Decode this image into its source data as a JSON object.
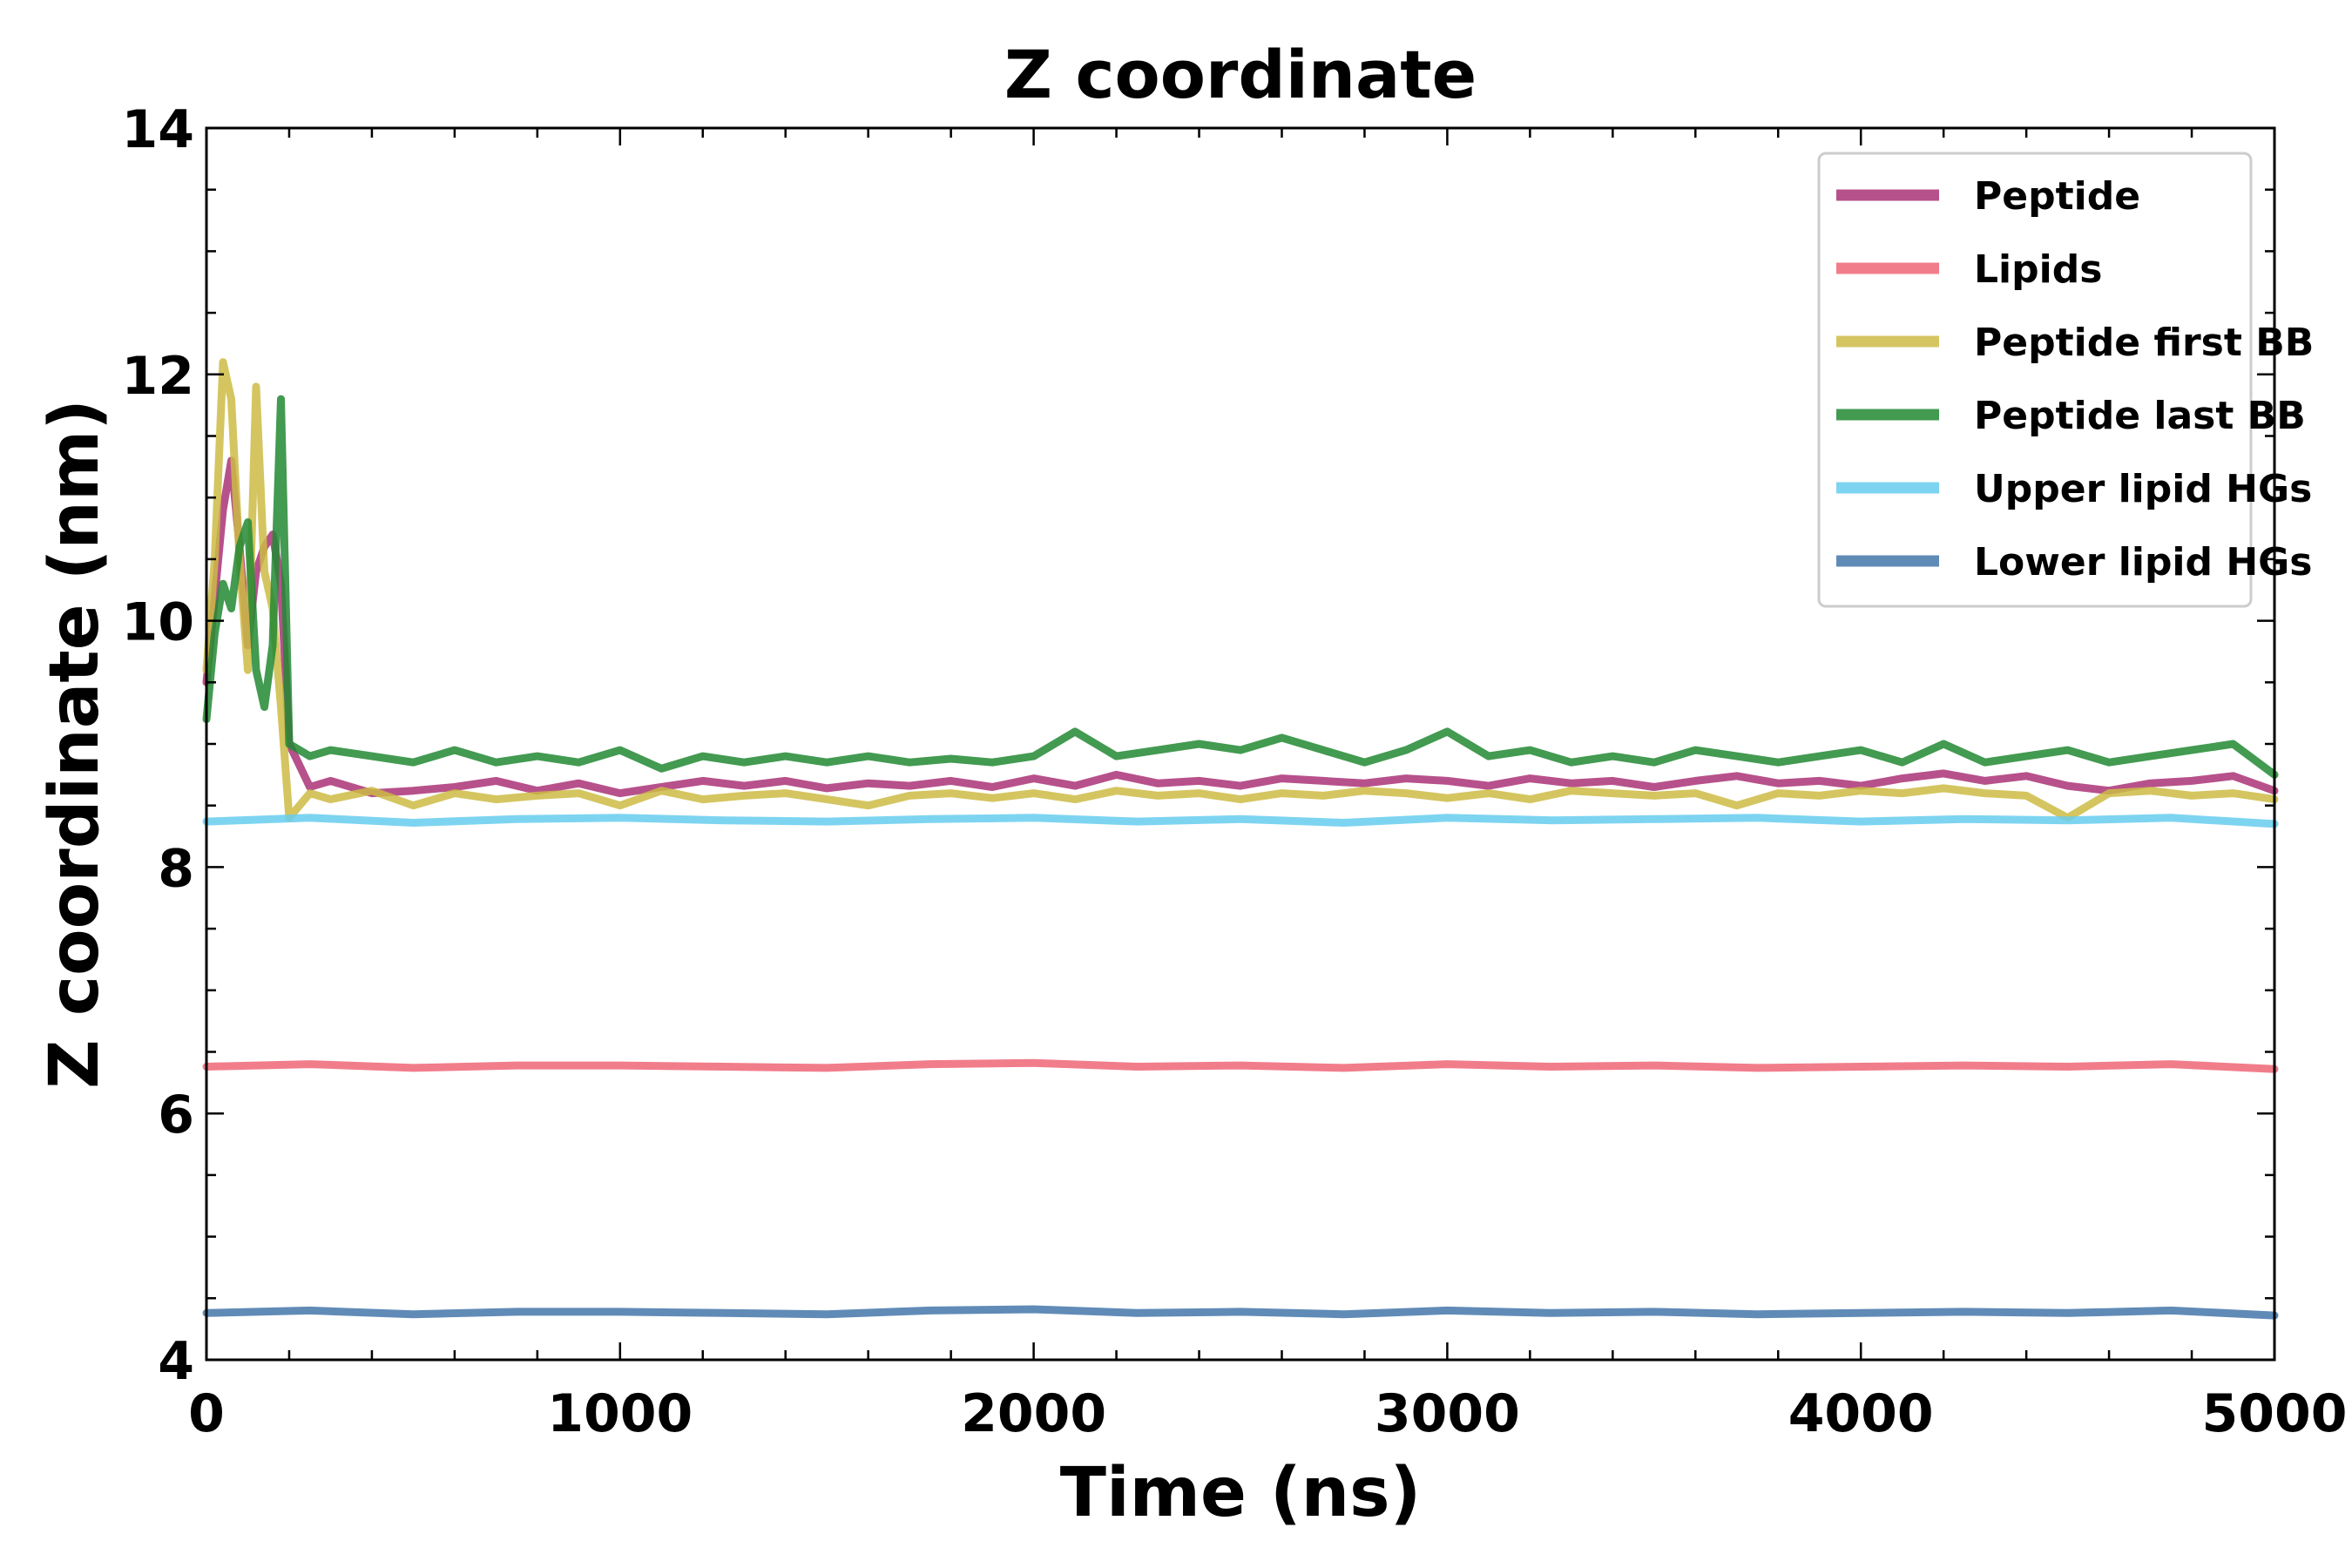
{
  "chart_data": {
    "type": "line",
    "title": "Z coordinate",
    "xlabel": "Time (ns)",
    "ylabel": "Z coordinate (nm)",
    "xlim": [
      0,
      5000
    ],
    "ylim": [
      4,
      14
    ],
    "xticks": [
      0,
      1000,
      2000,
      3000,
      4000,
      5000
    ],
    "yticks": [
      4,
      6,
      8,
      10,
      12,
      14
    ],
    "grid": false,
    "legend_position": "top-right",
    "series": [
      {
        "name": "Peptide",
        "color": "#AA3377",
        "x": [
          0,
          20,
          40,
          60,
          80,
          100,
          120,
          140,
          160,
          180,
          200,
          250,
          300,
          400,
          500,
          600,
          700,
          800,
          900,
          1000,
          1100,
          1200,
          1300,
          1400,
          1500,
          1600,
          1700,
          1800,
          1900,
          2000,
          2100,
          2200,
          2300,
          2400,
          2500,
          2600,
          2700,
          2800,
          2900,
          3000,
          3100,
          3200,
          3300,
          3400,
          3500,
          3600,
          3700,
          3800,
          3900,
          4000,
          4100,
          4200,
          4300,
          4400,
          4500,
          4600,
          4700,
          4800,
          4900,
          5000
        ],
        "y": [
          9.5,
          10.2,
          10.9,
          11.3,
          10.6,
          9.8,
          10.4,
          10.6,
          10.7,
          10.3,
          9.0,
          8.65,
          8.7,
          8.6,
          8.62,
          8.65,
          8.7,
          8.62,
          8.68,
          8.6,
          8.65,
          8.7,
          8.66,
          8.7,
          8.64,
          8.68,
          8.66,
          8.7,
          8.65,
          8.72,
          8.66,
          8.75,
          8.68,
          8.7,
          8.66,
          8.72,
          8.7,
          8.68,
          8.72,
          8.7,
          8.66,
          8.72,
          8.68,
          8.7,
          8.65,
          8.7,
          8.74,
          8.68,
          8.7,
          8.66,
          8.72,
          8.76,
          8.7,
          8.74,
          8.66,
          8.62,
          8.68,
          8.7,
          8.74,
          8.62
        ]
      },
      {
        "name": "Lipids",
        "color": "#EE6677",
        "x": [
          0,
          250,
          500,
          750,
          1000,
          1250,
          1500,
          1750,
          2000,
          2250,
          2500,
          2750,
          3000,
          3250,
          3500,
          3750,
          4000,
          4250,
          4500,
          4750,
          5000
        ],
        "y": [
          6.38,
          6.4,
          6.37,
          6.39,
          6.39,
          6.38,
          6.37,
          6.4,
          6.41,
          6.38,
          6.39,
          6.37,
          6.4,
          6.38,
          6.39,
          6.37,
          6.38,
          6.39,
          6.38,
          6.4,
          6.36
        ]
      },
      {
        "name": "Peptide first BB",
        "color": "#CCBB44",
        "x": [
          0,
          20,
          40,
          60,
          80,
          100,
          120,
          140,
          160,
          180,
          200,
          250,
          300,
          400,
          500,
          600,
          700,
          800,
          900,
          1000,
          1100,
          1200,
          1300,
          1400,
          1500,
          1600,
          1700,
          1800,
          1900,
          2000,
          2100,
          2200,
          2300,
          2400,
          2500,
          2600,
          2700,
          2800,
          2900,
          3000,
          3100,
          3200,
          3300,
          3400,
          3500,
          3600,
          3700,
          3800,
          3900,
          4000,
          4100,
          4200,
          4300,
          4400,
          4500,
          4600,
          4700,
          4800,
          4900,
          5000
        ],
        "y": [
          9.6,
          10.5,
          12.1,
          11.8,
          10.5,
          9.6,
          11.9,
          10.4,
          10.1,
          9.3,
          8.4,
          8.6,
          8.55,
          8.62,
          8.5,
          8.6,
          8.55,
          8.58,
          8.6,
          8.5,
          8.62,
          8.55,
          8.58,
          8.6,
          8.55,
          8.5,
          8.58,
          8.6,
          8.56,
          8.6,
          8.55,
          8.62,
          8.58,
          8.6,
          8.55,
          8.6,
          8.58,
          8.62,
          8.6,
          8.56,
          8.6,
          8.55,
          8.62,
          8.6,
          8.58,
          8.6,
          8.5,
          8.6,
          8.58,
          8.62,
          8.6,
          8.64,
          8.6,
          8.58,
          8.4,
          8.6,
          8.62,
          8.58,
          8.6,
          8.55
        ]
      },
      {
        "name": "Peptide last BB",
        "color": "#228833",
        "x": [
          0,
          20,
          40,
          60,
          80,
          100,
          120,
          140,
          160,
          180,
          200,
          250,
          300,
          400,
          500,
          600,
          700,
          800,
          900,
          1000,
          1100,
          1200,
          1300,
          1400,
          1500,
          1600,
          1700,
          1800,
          1900,
          2000,
          2100,
          2200,
          2300,
          2400,
          2500,
          2600,
          2700,
          2800,
          2900,
          3000,
          3100,
          3200,
          3300,
          3400,
          3500,
          3600,
          3700,
          3800,
          3900,
          4000,
          4100,
          4200,
          4300,
          4400,
          4500,
          4600,
          4700,
          4800,
          4900,
          5000
        ],
        "y": [
          9.2,
          9.9,
          10.3,
          10.1,
          10.6,
          10.8,
          9.6,
          9.3,
          9.8,
          11.8,
          9.0,
          8.9,
          8.95,
          8.9,
          8.85,
          8.95,
          8.85,
          8.9,
          8.85,
          8.95,
          8.8,
          8.9,
          8.85,
          8.9,
          8.85,
          8.9,
          8.85,
          8.88,
          8.85,
          8.9,
          9.1,
          8.9,
          8.95,
          9.0,
          8.95,
          9.05,
          8.95,
          8.85,
          8.95,
          9.1,
          8.9,
          8.95,
          8.85,
          8.9,
          8.85,
          8.95,
          8.9,
          8.85,
          8.9,
          8.95,
          8.85,
          9.0,
          8.85,
          8.9,
          8.95,
          8.85,
          8.9,
          8.95,
          9.0,
          8.75
        ]
      },
      {
        "name": "Upper lipid HGs",
        "color": "#66CCEE",
        "x": [
          0,
          250,
          500,
          750,
          1000,
          1250,
          1500,
          1750,
          2000,
          2250,
          2500,
          2750,
          3000,
          3250,
          3500,
          3750,
          4000,
          4250,
          4500,
          4750,
          5000
        ],
        "y": [
          8.37,
          8.4,
          8.36,
          8.39,
          8.4,
          8.38,
          8.37,
          8.39,
          8.4,
          8.37,
          8.39,
          8.36,
          8.4,
          8.38,
          8.39,
          8.4,
          8.37,
          8.39,
          8.38,
          8.4,
          8.35
        ]
      },
      {
        "name": "Lower lipid HGs",
        "color": "#4477AA",
        "x": [
          0,
          250,
          500,
          750,
          1000,
          1250,
          1500,
          1750,
          2000,
          2250,
          2500,
          2750,
          3000,
          3250,
          3500,
          3750,
          4000,
          4250,
          4500,
          4750,
          5000
        ],
        "y": [
          4.38,
          4.4,
          4.37,
          4.39,
          4.39,
          4.38,
          4.37,
          4.4,
          4.41,
          4.38,
          4.39,
          4.37,
          4.4,
          4.38,
          4.39,
          4.37,
          4.38,
          4.39,
          4.38,
          4.4,
          4.36
        ]
      }
    ]
  }
}
